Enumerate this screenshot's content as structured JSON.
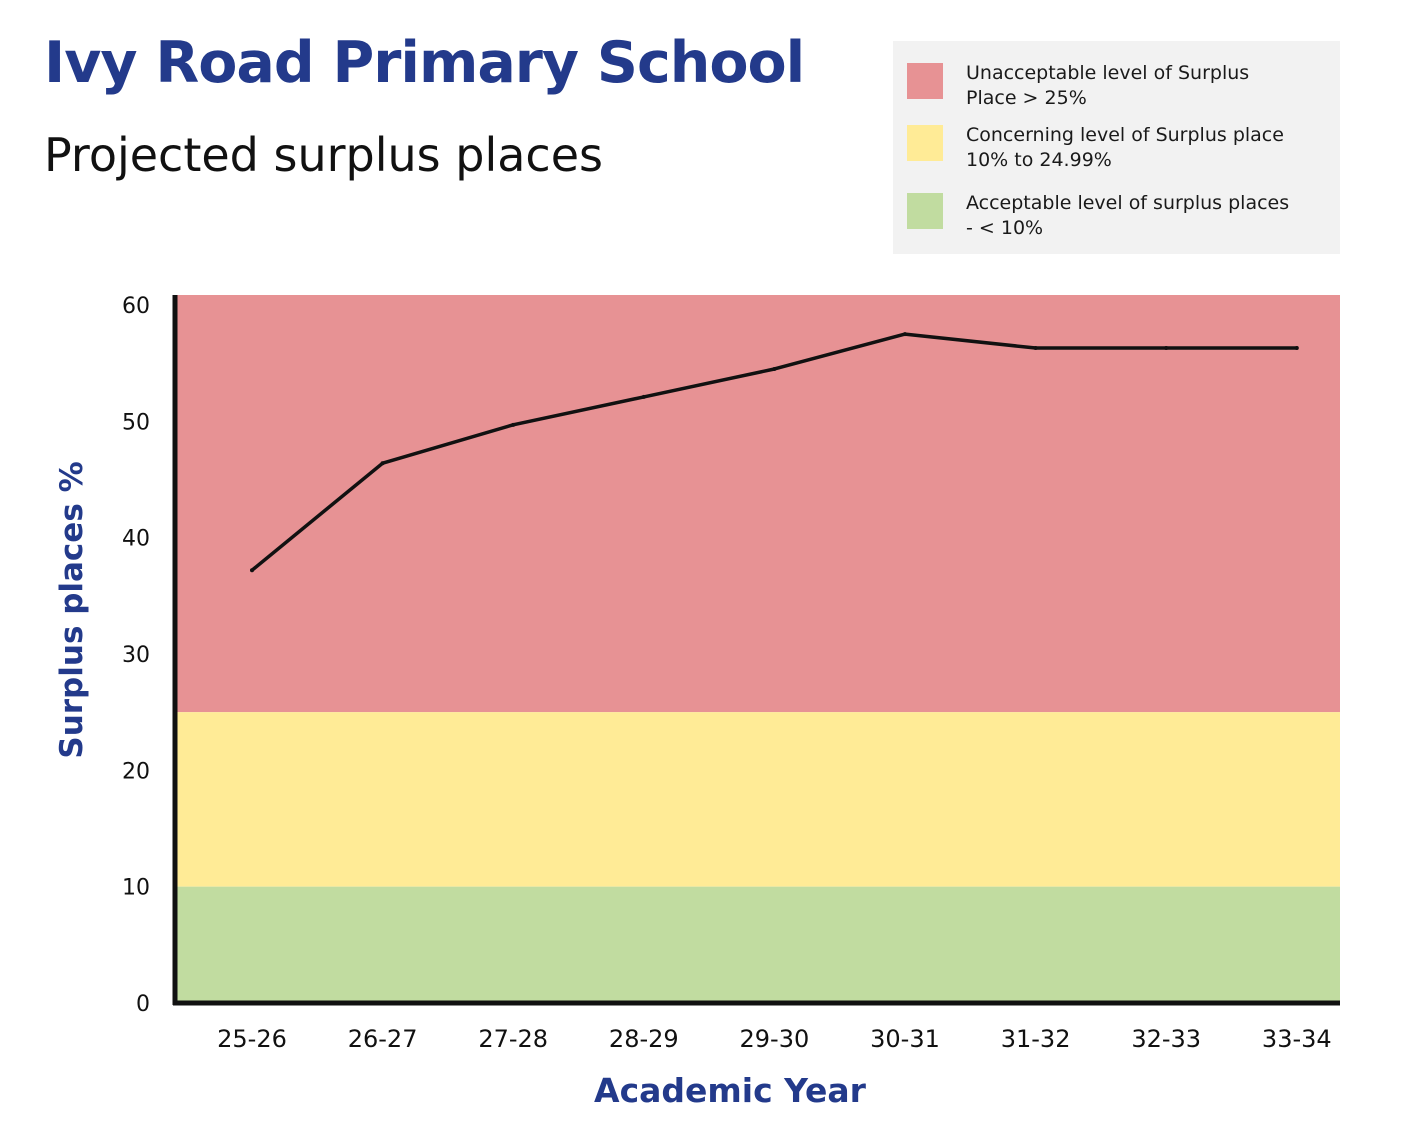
{
  "header": {
    "title": "Ivy Road Primary School",
    "subtitle": "Projected surplus places"
  },
  "legend": {
    "items": [
      {
        "line1": "Unacceptable level of Surplus",
        "line2": "Place > 25%",
        "color": "#e79294"
      },
      {
        "line1": "Concerning level of Surplus place",
        "line2": "10% to 24.99%",
        "color": "#ffeb96"
      },
      {
        "line1": "Acceptable level of surplus places",
        "line2": "- < 10%",
        "color": "#c1dca0"
      }
    ]
  },
  "chart_data": {
    "type": "line",
    "title": "Projected surplus places",
    "xlabel": "Academic Year",
    "ylabel": "Surplus places %",
    "ylim": [
      0,
      60
    ],
    "yticks": [
      0,
      10,
      20,
      30,
      40,
      50,
      60
    ],
    "categories": [
      "25-26",
      "26-27",
      "27-28",
      "28-29",
      "29-30",
      "30-31",
      "31-32",
      "32-33",
      "33-34"
    ],
    "series": [
      {
        "name": "Projected surplus places",
        "values": [
          37.2,
          46.4,
          49.7,
          52.1,
          54.5,
          57.5,
          56.3,
          56.3,
          56.3
        ]
      }
    ],
    "bands": [
      {
        "name": "Unacceptable",
        "from": 25,
        "to": 61,
        "color": "#e79294"
      },
      {
        "name": "Concerning",
        "from": 10,
        "to": 25,
        "color": "#ffeb96"
      },
      {
        "name": "Acceptable",
        "from": 0,
        "to": 10,
        "color": "#c1dca0"
      }
    ],
    "line_color": "#111111",
    "axis_title_color": "#233a8b",
    "grid": false
  }
}
